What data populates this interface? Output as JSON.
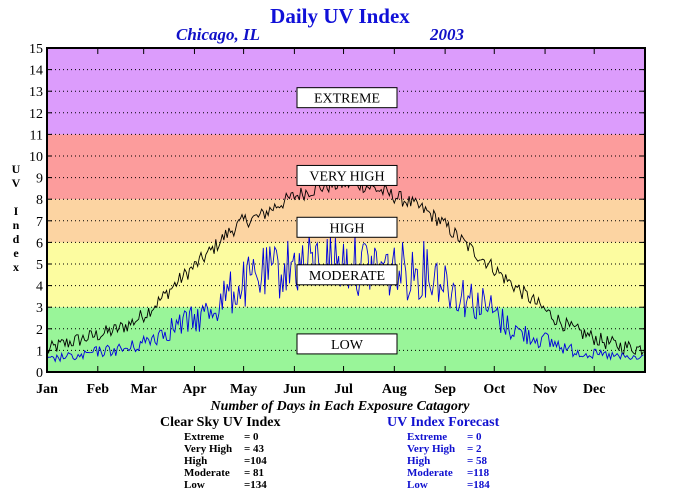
{
  "title": "Daily UV Index",
  "location": "Chicago, IL",
  "year": "2003",
  "subtitle": "Number of Days in Each Exposure Catagory",
  "clear_sky": {
    "header": "Clear Sky UV Index",
    "rows": [
      {
        "label": "Extreme",
        "value": "=    0"
      },
      {
        "label": "Very High",
        "value": "=  43"
      },
      {
        "label": "High",
        "value": "=104"
      },
      {
        "label": "Moderate",
        "value": "=  81"
      },
      {
        "label": "Low",
        "value": "=134"
      }
    ]
  },
  "forecast": {
    "header": "UV Index Forecast",
    "rows": [
      {
        "label": "Extreme",
        "value": "=    0"
      },
      {
        "label": "Very High",
        "value": "=    2"
      },
      {
        "label": "High",
        "value": "=  58"
      },
      {
        "label": "Moderate",
        "value": "=118"
      },
      {
        "label": "Low",
        "value": "=184"
      }
    ]
  },
  "chart_data": {
    "type": "line",
    "title": "Daily UV Index",
    "ylabel": "UV Index",
    "xlabel": "",
    "ylim": [
      0,
      15
    ],
    "xlim": [
      0,
      365
    ],
    "yticks": [
      "0",
      "1",
      "2",
      "3",
      "4",
      "5",
      "6",
      "7",
      "8",
      "9",
      "10",
      "11",
      "12",
      "13",
      "14",
      "15"
    ],
    "months": [
      "Jan",
      "Feb",
      "Mar",
      "Apr",
      "May",
      "Jun",
      "Jul",
      "Aug",
      "Sep",
      "Oct",
      "Nov",
      "Dec"
    ],
    "month_start_days": [
      0,
      31,
      59,
      90,
      120,
      151,
      181,
      212,
      243,
      273,
      304,
      334
    ],
    "grid": true,
    "bands": [
      {
        "label": "LOW",
        "from": 0,
        "to": 3,
        "color": "#99f599",
        "label_y": 1.3
      },
      {
        "label": "MODERATE",
        "from": 3,
        "to": 6,
        "color": "#fcfca0",
        "label_y": 4.5
      },
      {
        "label": "HIGH",
        "from": 6,
        "to": 8,
        "color": "#fcd4a2",
        "label_y": 6.7
      },
      {
        "label": "VERY HIGH",
        "from": 8,
        "to": 11,
        "color": "#fc9c9c",
        "label_y": 9.1
      },
      {
        "label": "EXTREME",
        "from": 11,
        "to": 15,
        "color": "#dc9cfc",
        "label_y": 12.7
      }
    ],
    "series": [
      {
        "color": "#000000",
        "x": [
          0,
          10,
          20,
          30,
          40,
          50,
          60,
          70,
          80,
          90,
          100,
          110,
          120,
          130,
          140,
          150,
          160,
          170,
          180,
          190,
          200,
          210,
          220,
          230,
          240,
          250,
          260,
          270,
          280,
          290,
          300,
          310,
          320,
          330,
          340,
          350,
          360,
          364
        ],
        "values": [
          1.0,
          1.3,
          1.5,
          1.7,
          1.9,
          2.2,
          2.7,
          3.4,
          4.2,
          4.9,
          5.6,
          6.4,
          7.0,
          7.2,
          7.7,
          8.1,
          8.4,
          8.6,
          8.7,
          8.7,
          8.5,
          8.2,
          7.9,
          7.5,
          7.0,
          6.3,
          5.6,
          5.0,
          4.3,
          3.7,
          3.1,
          2.5,
          2.0,
          1.7,
          1.4,
          1.2,
          1.1,
          1.1
        ]
      },
      {
        "color": "#0000dd",
        "x": [
          0,
          10,
          20,
          30,
          40,
          50,
          60,
          70,
          80,
          90,
          100,
          110,
          120,
          130,
          140,
          150,
          160,
          170,
          180,
          190,
          200,
          210,
          220,
          230,
          240,
          250,
          260,
          270,
          280,
          290,
          300,
          310,
          320,
          330,
          340,
          350,
          360,
          364
        ],
        "values": [
          0.7,
          0.9,
          0.9,
          1.2,
          1.3,
          1.4,
          1.8,
          2.4,
          2.8,
          3.1,
          3.7,
          4.6,
          5.2,
          5.7,
          6.0,
          6.4,
          6.4,
          6.6,
          6.6,
          6.4,
          6.4,
          6.1,
          6.0,
          6.1,
          5.7,
          4.8,
          4.3,
          3.8,
          2.8,
          2.3,
          2.0,
          1.7,
          1.3,
          1.1,
          1.0,
          0.9,
          0.8,
          0.9
        ]
      }
    ]
  }
}
